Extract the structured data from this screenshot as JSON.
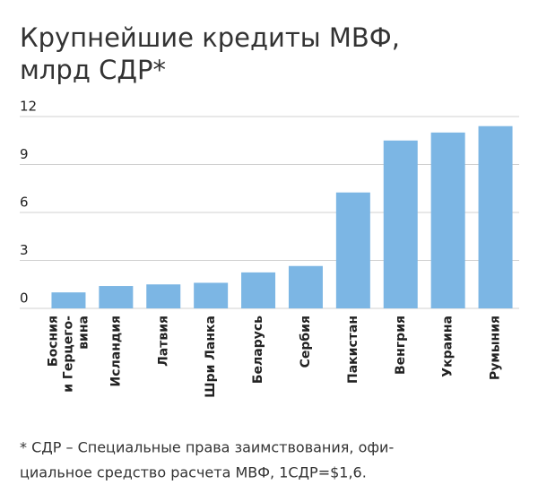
{
  "chart_data": {
    "type": "bar",
    "title": [
      "Крупнейшие кредиты МВФ,",
      "млрд СДР*"
    ],
    "categories": [
      [
        "Босния",
        "и Герцего-",
        "вина"
      ],
      [
        "Исландия"
      ],
      [
        "Латвия"
      ],
      [
        "Шри Ланка"
      ],
      [
        "Беларусь"
      ],
      [
        "Сербия"
      ],
      [
        "Пакистан"
      ],
      [
        "Венгрия"
      ],
      [
        "Украина"
      ],
      [
        "Румыния"
      ]
    ],
    "values": [
      1.0,
      1.4,
      1.5,
      1.6,
      2.25,
      2.65,
      7.25,
      10.5,
      11.0,
      11.4
    ],
    "color": "#7cb6e4",
    "ylim": [
      0,
      12
    ],
    "yticks": [
      0,
      3,
      6,
      9,
      12
    ],
    "grid": true,
    "footnote": [
      "* СДР – Специальные права заимствования, офи-",
      "циальное средство расчета МВФ, 1СДР=$1,6."
    ]
  }
}
